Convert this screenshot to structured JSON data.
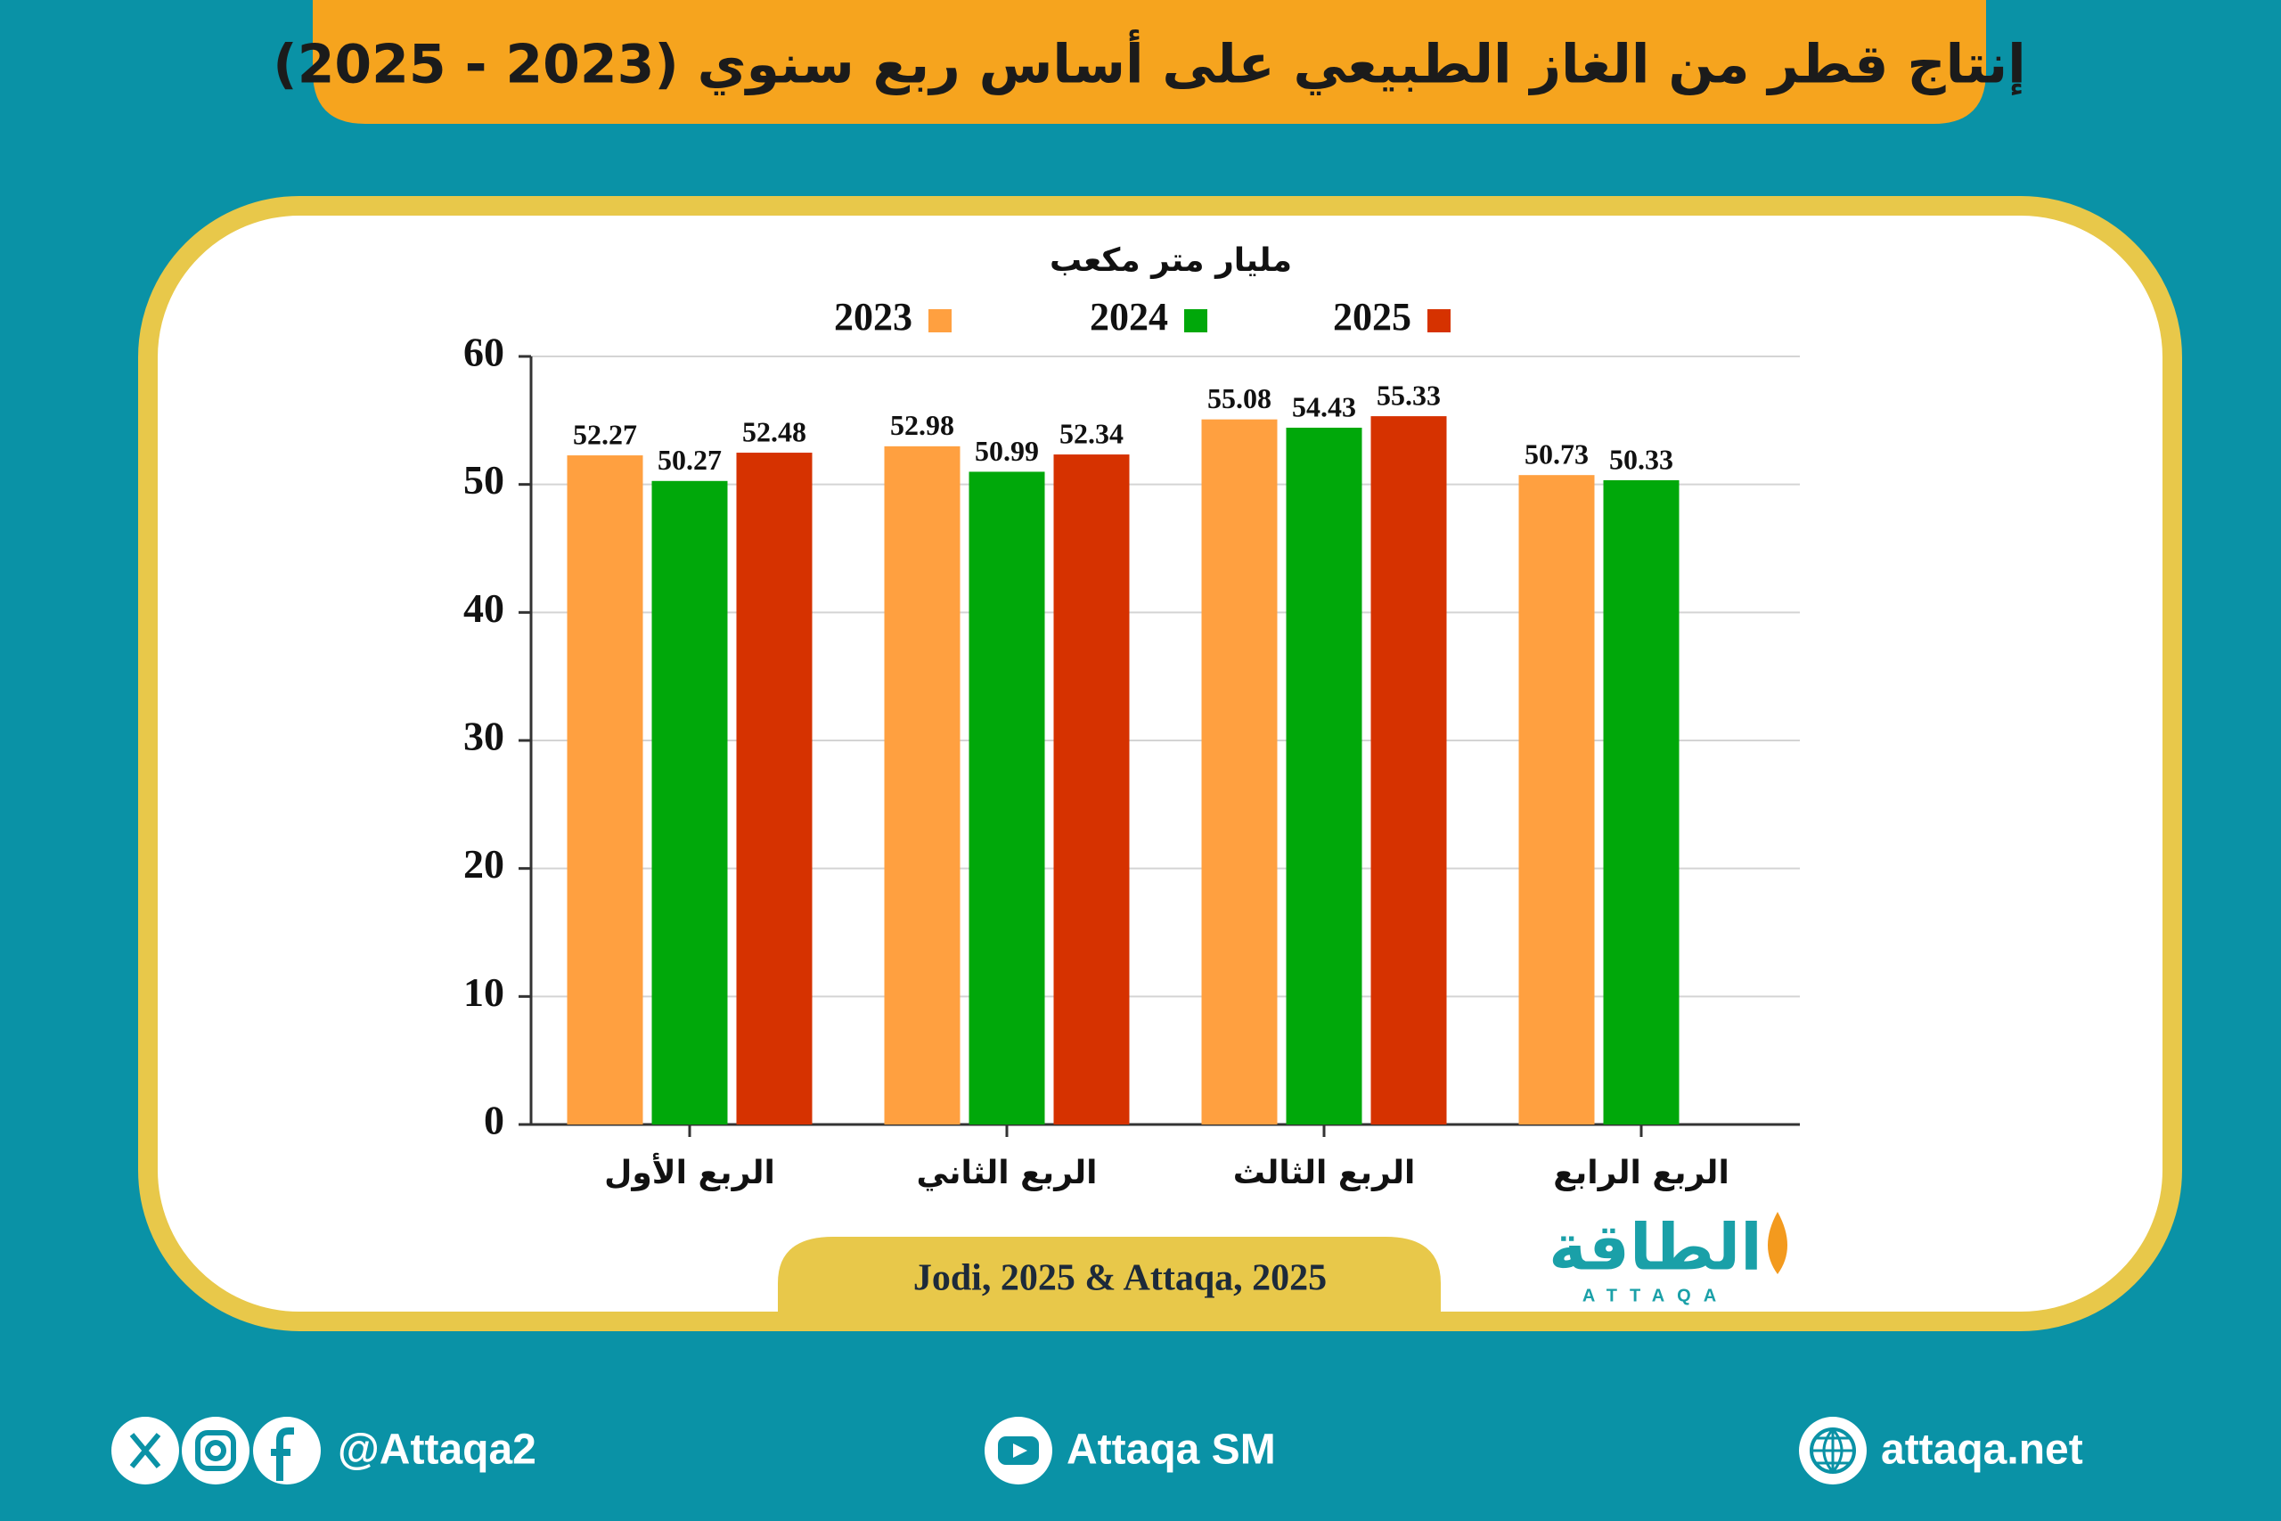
{
  "chart_data": {
    "type": "bar",
    "title": "إنتاج قطر من الغاز الطبيعي على أساس ربع سنوي (2023 - 2025)",
    "ylabel": "مليار متر مكعب",
    "categories": [
      "الربع الأول",
      "الربع الثاني",
      "الربع الثالث",
      "الربع الرابع"
    ],
    "series": [
      {
        "name": "2023",
        "color": "#ffa040",
        "values": [
          52.27,
          52.98,
          55.08,
          50.73
        ]
      },
      {
        "name": "2024",
        "color": "#00a80a",
        "values": [
          50.27,
          50.99,
          54.43,
          50.33
        ]
      },
      {
        "name": "2025",
        "color": "#d63200",
        "values": [
          52.48,
          52.34,
          55.33,
          null
        ]
      }
    ],
    "ylim": [
      0,
      60
    ],
    "yticks": [
      0,
      10,
      20,
      30,
      40,
      50,
      60
    ],
    "grid": true
  },
  "source": "Jodi, 2025 & Attaqa, 2025",
  "logo": {
    "arabic": "الطاقة",
    "latin": "ATTAQA"
  },
  "footer": {
    "social": "@Attaqa2",
    "youtube": "Attaqa SM",
    "website": "attaqa.net"
  }
}
